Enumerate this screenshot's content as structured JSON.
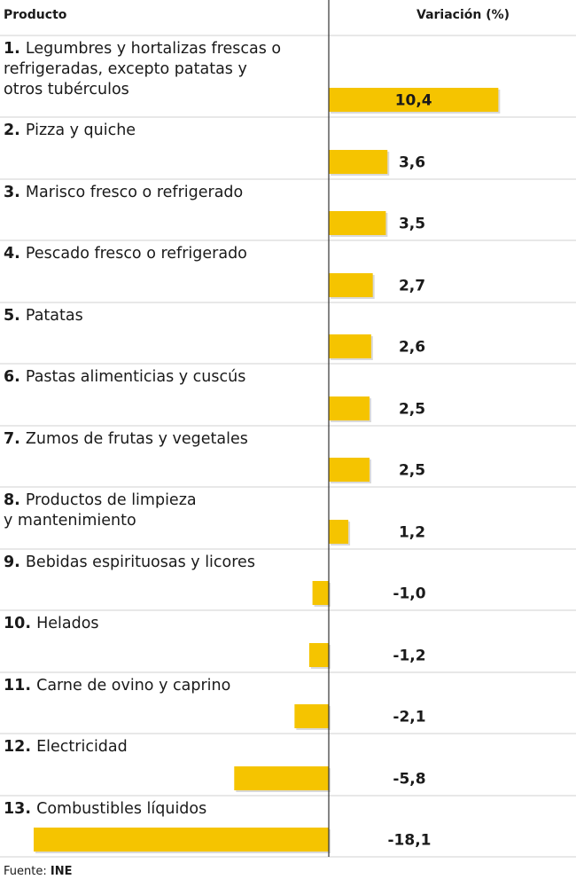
{
  "chart_data": {
    "type": "bar",
    "orientation": "horizontal",
    "header_left": "Producto",
    "header_right": "Variación (%)",
    "rows": [
      {
        "num": "1.",
        "label": [
          "Legumbres y hortalizas frescas o",
          "refrigeradas, excepto patatas y",
          "otros tubérculos"
        ],
        "value": 10.4,
        "value_label": "10,4"
      },
      {
        "num": "2.",
        "label": [
          "Pizza y quiche"
        ],
        "value": 3.6,
        "value_label": "3,6"
      },
      {
        "num": "3.",
        "label": [
          "Marisco fresco o refrigerado"
        ],
        "value": 3.5,
        "value_label": "3,5"
      },
      {
        "num": "4.",
        "label": [
          "Pescado fresco o refrigerado"
        ],
        "value": 2.7,
        "value_label": "2,7"
      },
      {
        "num": "5.",
        "label": [
          "Patatas"
        ],
        "value": 2.6,
        "value_label": "2,6"
      },
      {
        "num": "6.",
        "label": [
          "Pastas alimenticias y cuscús"
        ],
        "value": 2.5,
        "value_label": "2,5"
      },
      {
        "num": "7.",
        "label": [
          "Zumos de frutas y vegetales"
        ],
        "value": 2.5,
        "value_label": "2,5"
      },
      {
        "num": "8.",
        "label": [
          "Productos de limpieza",
          "y mantenimiento"
        ],
        "value": 1.2,
        "value_label": "1,2"
      },
      {
        "num": "9.",
        "label": [
          "Bebidas espirituosas y licores"
        ],
        "value": -1.0,
        "value_label": "-1,0"
      },
      {
        "num": "10.",
        "label": [
          "Helados"
        ],
        "value": -1.2,
        "value_label": "-1,2"
      },
      {
        "num": "11.",
        "label": [
          "Carne de ovino y caprino"
        ],
        "value": -2.1,
        "value_label": "-2,1"
      },
      {
        "num": "12.",
        "label": [
          "Electricidad"
        ],
        "value": -5.8,
        "value_label": "-5,8"
      },
      {
        "num": "13.",
        "label": [
          "Combustibles líquidos"
        ],
        "value": -18.1,
        "value_label": "-18,1"
      }
    ],
    "bar_color": "#f5c400",
    "xlim": [
      -18.1,
      10.4
    ]
  },
  "source": {
    "prefix": "Fuente: ",
    "name": "INE"
  }
}
